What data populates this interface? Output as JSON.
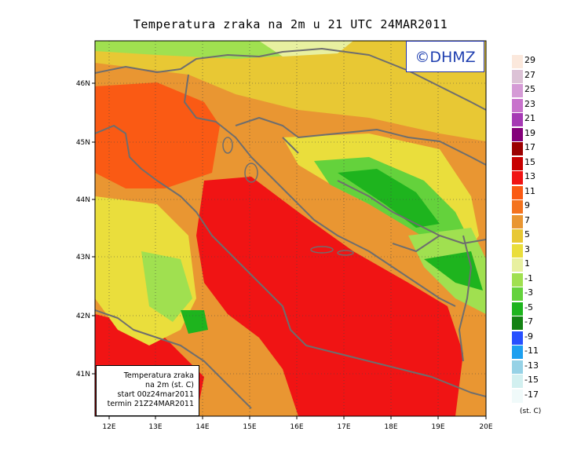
{
  "title": "Temperatura zraka na 2m u 21 UTC 24MAR2011",
  "logo": "©DHMZ",
  "info": [
    "Temperatura zraka",
    "na 2m (st. C)",
    "start 00z24mar2011",
    "termin 21Z24MAR2011"
  ],
  "lat_labels": [
    "46N",
    "45N",
    "44N",
    "43N",
    "42N",
    "41N"
  ],
  "lon_labels": [
    "12E",
    "13E",
    "14E",
    "15E",
    "16E",
    "17E",
    "18E",
    "19E",
    "20E"
  ],
  "legend": {
    "unit": "(st. C)",
    "labels": [
      "29",
      "27",
      "25",
      "23",
      "21",
      "19",
      "17",
      "15",
      "13",
      "11",
      "9",
      "7",
      "5",
      "3",
      "1",
      "-1",
      "-3",
      "-5",
      "-7",
      "-9",
      "-11",
      "-13",
      "-15",
      "-17"
    ],
    "colors": [
      "#fbe8dc",
      "#dcc2d6",
      "#d59bd6",
      "#c873cc",
      "#a63ab4",
      "#84007a",
      "#9c0000",
      "#c80000",
      "#f01414",
      "#fa5a14",
      "#f4731e",
      "#e99632",
      "#e8c834",
      "#eade3c",
      "#e8f0a0",
      "#a0e050",
      "#64d23c",
      "#1eb41e",
      "#148214",
      "#2850ff",
      "#1ea0f0",
      "#96d2e6",
      "#d2f0f0",
      "#f0fafa"
    ]
  },
  "colors": {
    "land_low": "#64d23c",
    "sea": "#f01414",
    "border": "#7a7a7a",
    "logo_text": "#1f3fb0"
  }
}
